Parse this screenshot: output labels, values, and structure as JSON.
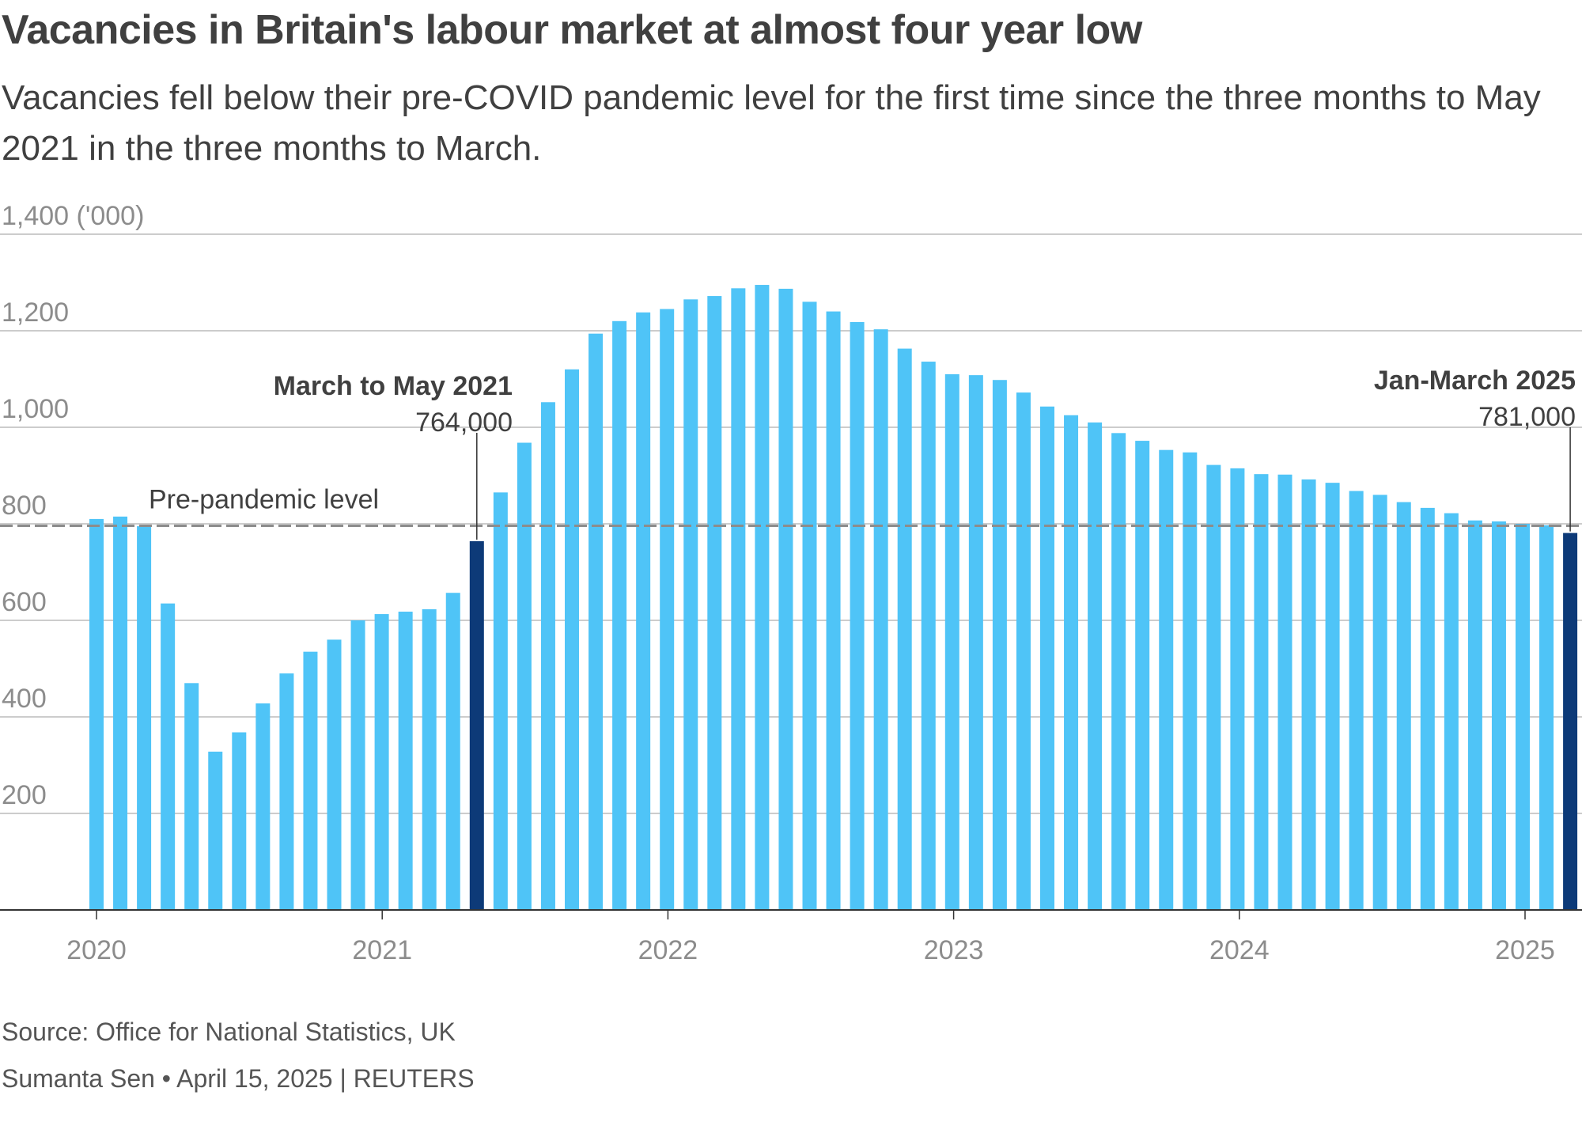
{
  "title": "Vacancies in Britain's labour market at almost four year low",
  "subtitle": "Vacancies fell below their pre-COVID pandemic level for the first time since the three months to May 2021 in the three months to March.",
  "source": "Source: Office for National Statistics, UK",
  "byline": "Sumanta Sen • April 15, 2025 | REUTERS",
  "colors": {
    "bar": "#4fc4f7",
    "highlight": "#0d3a78",
    "grid": "#bcbcbc",
    "reference": "#8c8c8c",
    "text": "#404040",
    "axis_text": "#8c8c8c"
  },
  "chart_data": {
    "type": "bar",
    "title": "Vacancies in Britain's labour market at almost four year low",
    "unit": "('000)",
    "ylim": [
      0,
      1400
    ],
    "yticks": [
      200,
      400,
      600,
      800,
      1000,
      1200,
      1400
    ],
    "ytick_labels": [
      "200",
      "400",
      "600",
      "800",
      "1,000",
      "1,200",
      "1,400 ('000)"
    ],
    "xticks": [
      "2020",
      "2021",
      "2022",
      "2023",
      "2024",
      "2025"
    ],
    "grid": true,
    "legend": "none",
    "reference_line": {
      "label": "Pre-pandemic level",
      "value": 796
    },
    "values": [
      810,
      815,
      795,
      635,
      470,
      328,
      368,
      428,
      490,
      535,
      560,
      600,
      613,
      618,
      623,
      657,
      764,
      865,
      968,
      1052,
      1120,
      1194,
      1220,
      1238,
      1245,
      1265,
      1272,
      1288,
      1295,
      1287,
      1260,
      1240,
      1218,
      1203,
      1163,
      1136,
      1110,
      1108,
      1098,
      1072,
      1043,
      1025,
      1010,
      988,
      972,
      953,
      948,
      922,
      915,
      903,
      902,
      892,
      885,
      868,
      860,
      845,
      833,
      822,
      807,
      805,
      800,
      797,
      781
    ],
    "highlight_indices": [
      16,
      62
    ],
    "annotations": [
      {
        "index": 16,
        "label": "March to May 2021",
        "value_label": "764,000"
      },
      {
        "index": 62,
        "label": "Jan-March 2025",
        "value_label": "781,000"
      }
    ]
  }
}
